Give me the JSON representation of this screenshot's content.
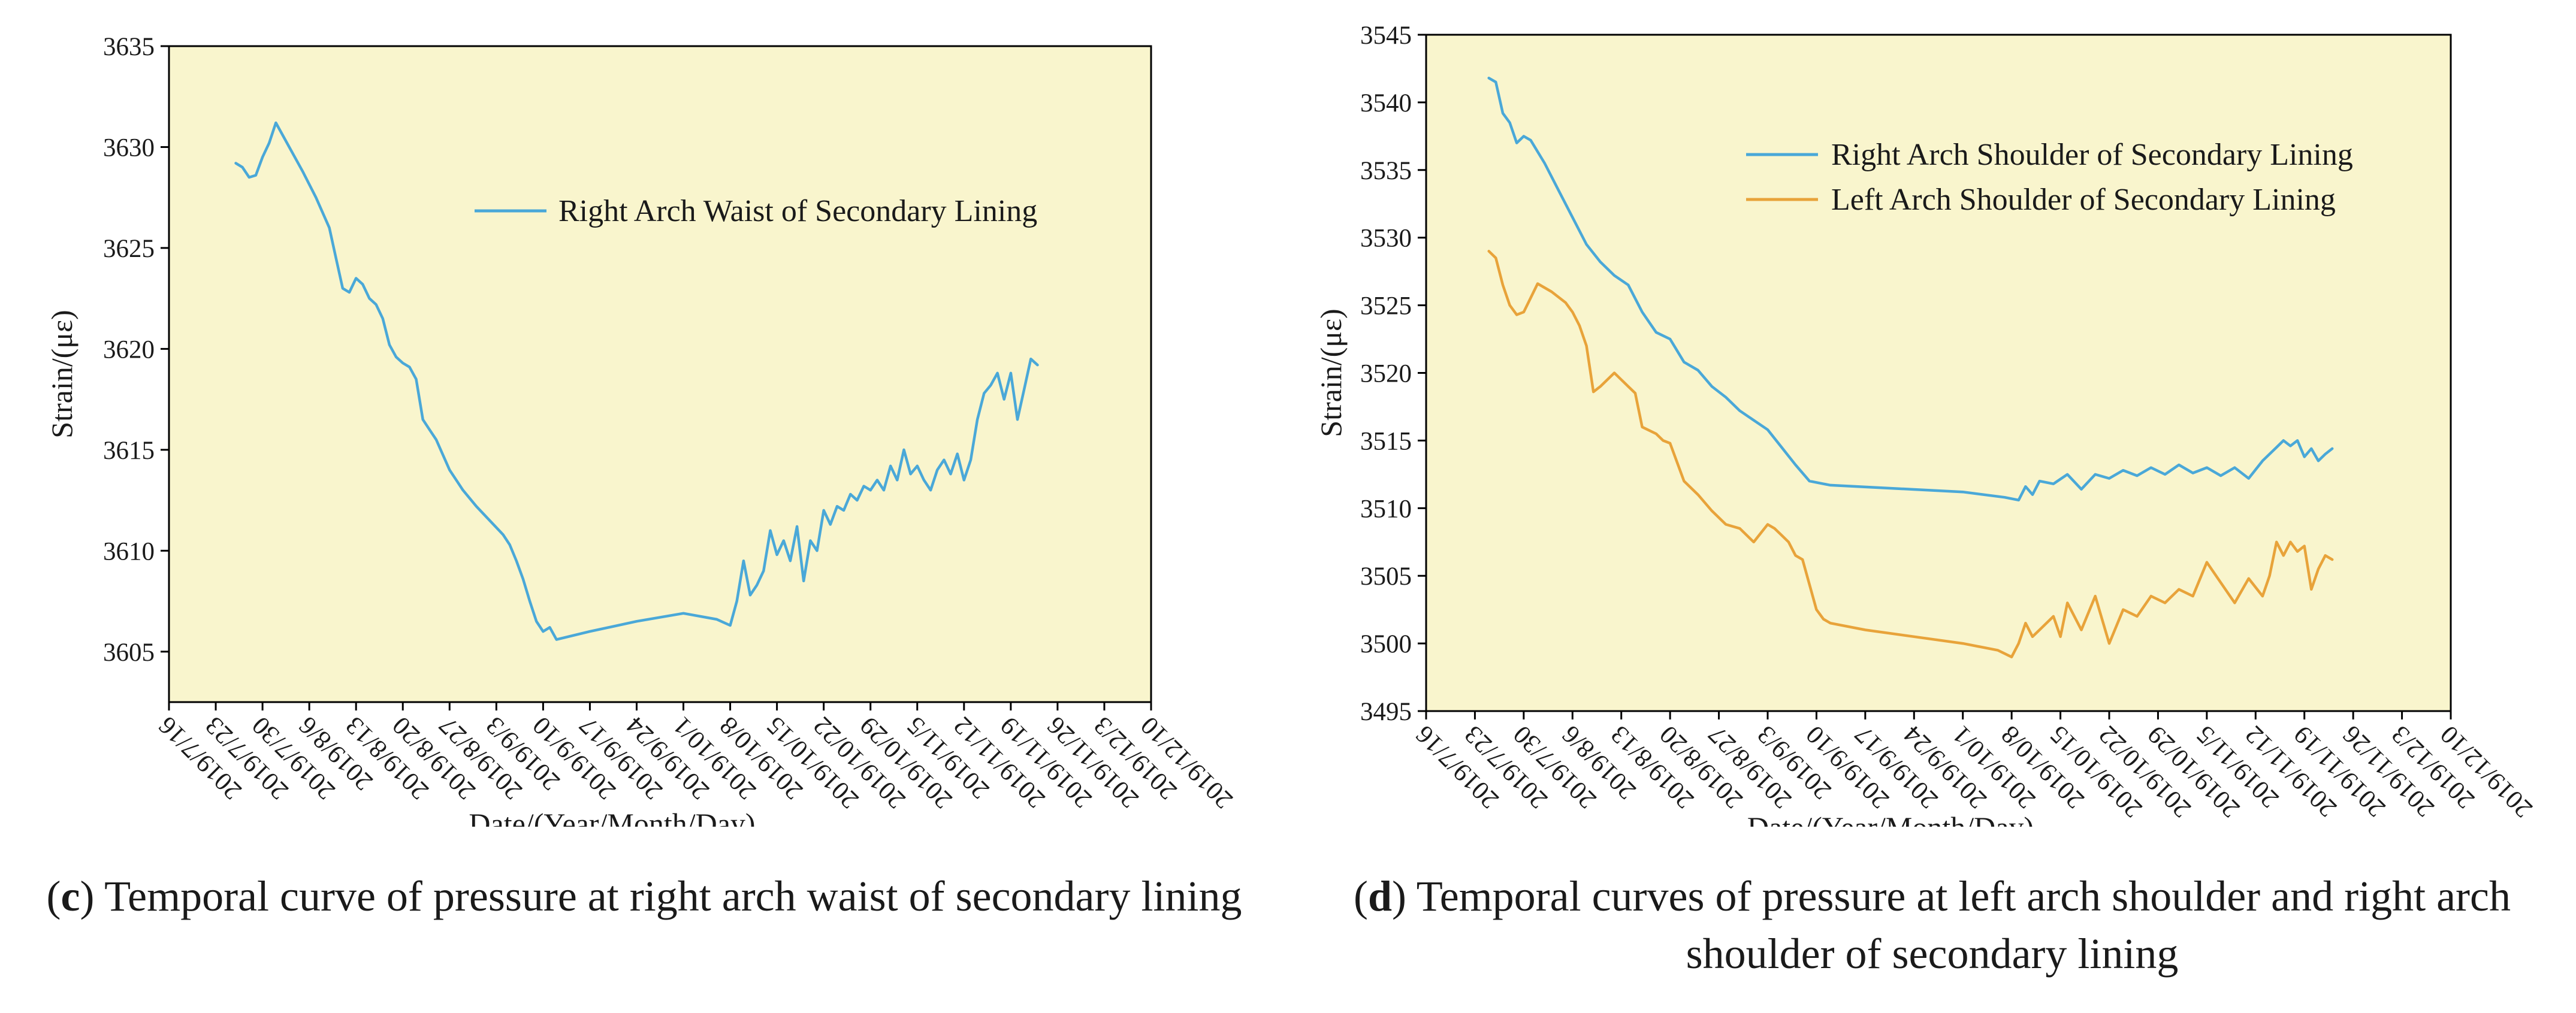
{
  "captions": {
    "c": {
      "letter": "c",
      "text": "Temporal curve of pressure at right arch waist of secondary lining"
    },
    "d": {
      "letter": "d",
      "text": "Temporal curves of pressure at left arch shoulder and right arch shoulder of secondary lining"
    }
  },
  "chart_data": [
    {
      "type": "line",
      "panel": "c",
      "xlabel": "Date/(Year/Month/Day)",
      "ylabel": "Strain/(με)",
      "plot_background": "#f9f5cd",
      "grid": false,
      "legend_position": "top-right",
      "x_ticks": [
        "2019/7/16",
        "2019/7/23",
        "2019/7/30",
        "2019/8/6",
        "2019/8/13",
        "2019/8/20",
        "2019/8/27",
        "2019/9/3",
        "2019/9/10",
        "2019/9/17",
        "2019/9/24",
        "2019/10/1",
        "2019/10/8",
        "2019/10/15",
        "2019/10/22",
        "2019/10/29",
        "2019/11/5",
        "2019/11/12",
        "2019/11/19",
        "2019/11/26",
        "2019/12/3",
        "2019/12/10"
      ],
      "x_range": [
        "2019/7/16",
        "2019/12/10"
      ],
      "y_ticks": [
        3605,
        3610,
        3615,
        3620,
        3625,
        3630,
        3635
      ],
      "y_range": [
        3602.5,
        3635
      ],
      "series": [
        {
          "name": "Right Arch Waist of Secondary Lining",
          "color": "#4aa8d8",
          "x": [
            "2019/7/26",
            "2019/7/27",
            "2019/7/28",
            "2019/7/29",
            "2019/7/30",
            "2019/7/31",
            "2019/8/1",
            "2019/8/3",
            "2019/8/5",
            "2019/8/7",
            "2019/8/9",
            "2019/8/10",
            "2019/8/11",
            "2019/8/12",
            "2019/8/13",
            "2019/8/14",
            "2019/8/15",
            "2019/8/16",
            "2019/8/17",
            "2019/8/18",
            "2019/8/19",
            "2019/8/20",
            "2019/8/21",
            "2019/8/22",
            "2019/8/23",
            "2019/8/24",
            "2019/8/25",
            "2019/8/27",
            "2019/8/29",
            "2019/8/31",
            "2019/9/2",
            "2019/9/4",
            "2019/9/5",
            "2019/9/6",
            "2019/9/7",
            "2019/9/8",
            "2019/9/9",
            "2019/9/10",
            "2019/9/11",
            "2019/9/12",
            "2019/9/17",
            "2019/9/24",
            "2019/10/1",
            "2019/10/6",
            "2019/10/8",
            "2019/10/9",
            "2019/10/10",
            "2019/10/11",
            "2019/10/12",
            "2019/10/13",
            "2019/10/14",
            "2019/10/15",
            "2019/10/16",
            "2019/10/17",
            "2019/10/18",
            "2019/10/19",
            "2019/10/20",
            "2019/10/21",
            "2019/10/22",
            "2019/10/23",
            "2019/10/24",
            "2019/10/25",
            "2019/10/26",
            "2019/10/27",
            "2019/10/28",
            "2019/10/29",
            "2019/10/30",
            "2019/10/31",
            "2019/11/1",
            "2019/11/2",
            "2019/11/3",
            "2019/11/4",
            "2019/11/5",
            "2019/11/6",
            "2019/11/7",
            "2019/11/8",
            "2019/11/9",
            "2019/11/10",
            "2019/11/11",
            "2019/11/12",
            "2019/11/13",
            "2019/11/14",
            "2019/11/15",
            "2019/11/16",
            "2019/11/17",
            "2019/11/18",
            "2019/11/19",
            "2019/11/20",
            "2019/11/21",
            "2019/11/22",
            "2019/11/23"
          ],
          "values": [
            3629.2,
            3629.0,
            3628.5,
            3628.6,
            3629.5,
            3630.2,
            3631.2,
            3630.0,
            3628.8,
            3627.5,
            3626.0,
            3624.5,
            3623.0,
            3622.8,
            3623.5,
            3623.2,
            3622.5,
            3622.2,
            3621.5,
            3620.2,
            3619.6,
            3619.3,
            3619.1,
            3618.5,
            3616.5,
            3616.0,
            3615.5,
            3614.0,
            3613.0,
            3612.2,
            3611.5,
            3610.8,
            3610.3,
            3609.5,
            3608.6,
            3607.5,
            3606.5,
            3606.0,
            3606.2,
            3605.6,
            3606.0,
            3606.5,
            3606.9,
            3606.6,
            3606.3,
            3607.5,
            3609.5,
            3607.8,
            3608.3,
            3609.0,
            3611.0,
            3609.8,
            3610.5,
            3609.5,
            3611.2,
            3608.5,
            3610.5,
            3610.0,
            3612.0,
            3611.3,
            3612.2,
            3612.0,
            3612.8,
            3612.5,
            3613.2,
            3613.0,
            3613.5,
            3613.0,
            3614.2,
            3613.5,
            3615.0,
            3613.8,
            3614.2,
            3613.5,
            3613.0,
            3614.0,
            3614.5,
            3613.8,
            3614.8,
            3613.5,
            3614.5,
            3616.5,
            3617.8,
            3618.2,
            3618.8,
            3617.5,
            3618.8,
            3616.5,
            3618.0,
            3619.5,
            3619.2
          ]
        }
      ]
    },
    {
      "type": "line",
      "panel": "d",
      "xlabel": "Date/(Year/Month/Day)",
      "ylabel": "Strain/(με)",
      "plot_background": "#f9f5cd",
      "grid": false,
      "legend_position": "top-right",
      "x_ticks": [
        "2019/7/16",
        "2019/7/23",
        "2019/7/30",
        "2019/8/6",
        "2019/8/13",
        "2019/8/20",
        "2019/8/27",
        "2019/9/3",
        "2019/9/10",
        "2019/9/17",
        "2019/9/24",
        "2019/10/1",
        "2019/10/8",
        "2019/10/15",
        "2019/10/22",
        "2019/10/29",
        "2019/11/5",
        "2019/11/12",
        "2019/11/19",
        "2019/11/26",
        "2019/12/3",
        "2019/12/10"
      ],
      "x_range": [
        "2019/7/16",
        "2019/12/10"
      ],
      "y_ticks": [
        3495,
        3500,
        3505,
        3510,
        3515,
        3520,
        3525,
        3530,
        3535,
        3540,
        3545
      ],
      "y_range": [
        3495,
        3545
      ],
      "series": [
        {
          "name": "Right Arch Shoulder of Secondary Lining",
          "color": "#4aa8d8",
          "x": [
            "2019/7/25",
            "2019/7/26",
            "2019/7/27",
            "2019/7/28",
            "2019/7/29",
            "2019/7/30",
            "2019/7/31",
            "2019/8/2",
            "2019/8/4",
            "2019/8/6",
            "2019/8/8",
            "2019/8/10",
            "2019/8/12",
            "2019/8/14",
            "2019/8/16",
            "2019/8/18",
            "2019/8/20",
            "2019/8/22",
            "2019/8/24",
            "2019/8/26",
            "2019/8/28",
            "2019/8/30",
            "2019/9/1",
            "2019/9/3",
            "2019/9/5",
            "2019/9/7",
            "2019/9/9",
            "2019/9/11",
            "2019/9/12",
            "2019/10/1",
            "2019/10/7",
            "2019/10/9",
            "2019/10/10",
            "2019/10/11",
            "2019/10/12",
            "2019/10/14",
            "2019/10/16",
            "2019/10/18",
            "2019/10/20",
            "2019/10/22",
            "2019/10/24",
            "2019/10/26",
            "2019/10/28",
            "2019/10/30",
            "2019/11/1",
            "2019/11/3",
            "2019/11/5",
            "2019/11/7",
            "2019/11/9",
            "2019/11/11",
            "2019/11/13",
            "2019/11/15",
            "2019/11/16",
            "2019/11/17",
            "2019/11/18",
            "2019/11/19",
            "2019/11/20",
            "2019/11/21",
            "2019/11/22",
            "2019/11/23"
          ],
          "values": [
            3541.8,
            3541.5,
            3539.2,
            3538.5,
            3537.0,
            3537.5,
            3537.2,
            3535.5,
            3533.5,
            3531.5,
            3529.5,
            3528.2,
            3527.2,
            3526.5,
            3524.5,
            3523.0,
            3522.5,
            3520.8,
            3520.2,
            3519.0,
            3518.2,
            3517.2,
            3516.5,
            3515.8,
            3514.5,
            3513.2,
            3512.0,
            3511.8,
            3511.7,
            3511.2,
            3510.8,
            3510.6,
            3511.6,
            3511.0,
            3512.0,
            3511.8,
            3512.5,
            3511.4,
            3512.5,
            3512.2,
            3512.8,
            3512.4,
            3513.0,
            3512.5,
            3513.2,
            3512.6,
            3513.0,
            3512.4,
            3513.0,
            3512.2,
            3513.5,
            3514.5,
            3515.0,
            3514.6,
            3515.0,
            3513.8,
            3514.4,
            3513.5,
            3514.0,
            3514.4
          ]
        },
        {
          "name": "Left Arch Shoulder of Secondary Lining",
          "color": "#e8a33a",
          "x": [
            "2019/7/25",
            "2019/7/26",
            "2019/7/27",
            "2019/7/28",
            "2019/7/29",
            "2019/7/30",
            "2019/8/1",
            "2019/8/3",
            "2019/8/5",
            "2019/8/6",
            "2019/8/7",
            "2019/8/8",
            "2019/8/9",
            "2019/8/10",
            "2019/8/12",
            "2019/8/13",
            "2019/8/14",
            "2019/8/15",
            "2019/8/16",
            "2019/8/18",
            "2019/8/19",
            "2019/8/20",
            "2019/8/22",
            "2019/8/24",
            "2019/8/26",
            "2019/8/28",
            "2019/8/30",
            "2019/9/1",
            "2019/9/3",
            "2019/9/4",
            "2019/9/5",
            "2019/9/6",
            "2019/9/7",
            "2019/9/8",
            "2019/9/10",
            "2019/9/11",
            "2019/9/12",
            "2019/9/17",
            "2019/9/24",
            "2019/10/1",
            "2019/10/6",
            "2019/10/8",
            "2019/10/9",
            "2019/10/10",
            "2019/10/11",
            "2019/10/12",
            "2019/10/14",
            "2019/10/15",
            "2019/10/16",
            "2019/10/18",
            "2019/10/20",
            "2019/10/22",
            "2019/10/24",
            "2019/10/26",
            "2019/10/28",
            "2019/10/30",
            "2019/11/1",
            "2019/11/3",
            "2019/11/5",
            "2019/11/7",
            "2019/11/9",
            "2019/11/11",
            "2019/11/13",
            "2019/11/14",
            "2019/11/15",
            "2019/11/16",
            "2019/11/17",
            "2019/11/18",
            "2019/11/19",
            "2019/11/20",
            "2019/11/21",
            "2019/11/22",
            "2019/11/23"
          ],
          "values": [
            3529.0,
            3528.5,
            3526.5,
            3525.0,
            3524.3,
            3524.5,
            3526.6,
            3526.0,
            3525.2,
            3524.5,
            3523.5,
            3522.0,
            3518.6,
            3519.0,
            3520.0,
            3519.5,
            3519.0,
            3518.5,
            3516.0,
            3515.5,
            3515.0,
            3514.8,
            3512.0,
            3511.0,
            3509.8,
            3508.8,
            3508.5,
            3507.5,
            3508.8,
            3508.5,
            3508.0,
            3507.5,
            3506.5,
            3506.2,
            3502.5,
            3501.8,
            3501.5,
            3501.0,
            3500.5,
            3500.0,
            3499.5,
            3499.0,
            3500.0,
            3501.5,
            3500.5,
            3501.0,
            3502.0,
            3500.5,
            3503.0,
            3501.0,
            3503.5,
            3500.0,
            3502.5,
            3502.0,
            3503.5,
            3503.0,
            3504.0,
            3503.5,
            3506.0,
            3504.5,
            3503.0,
            3504.8,
            3503.5,
            3505.0,
            3507.5,
            3506.5,
            3507.5,
            3506.8,
            3507.2,
            3504.0,
            3505.5,
            3506.5,
            3506.2
          ]
        }
      ]
    }
  ]
}
